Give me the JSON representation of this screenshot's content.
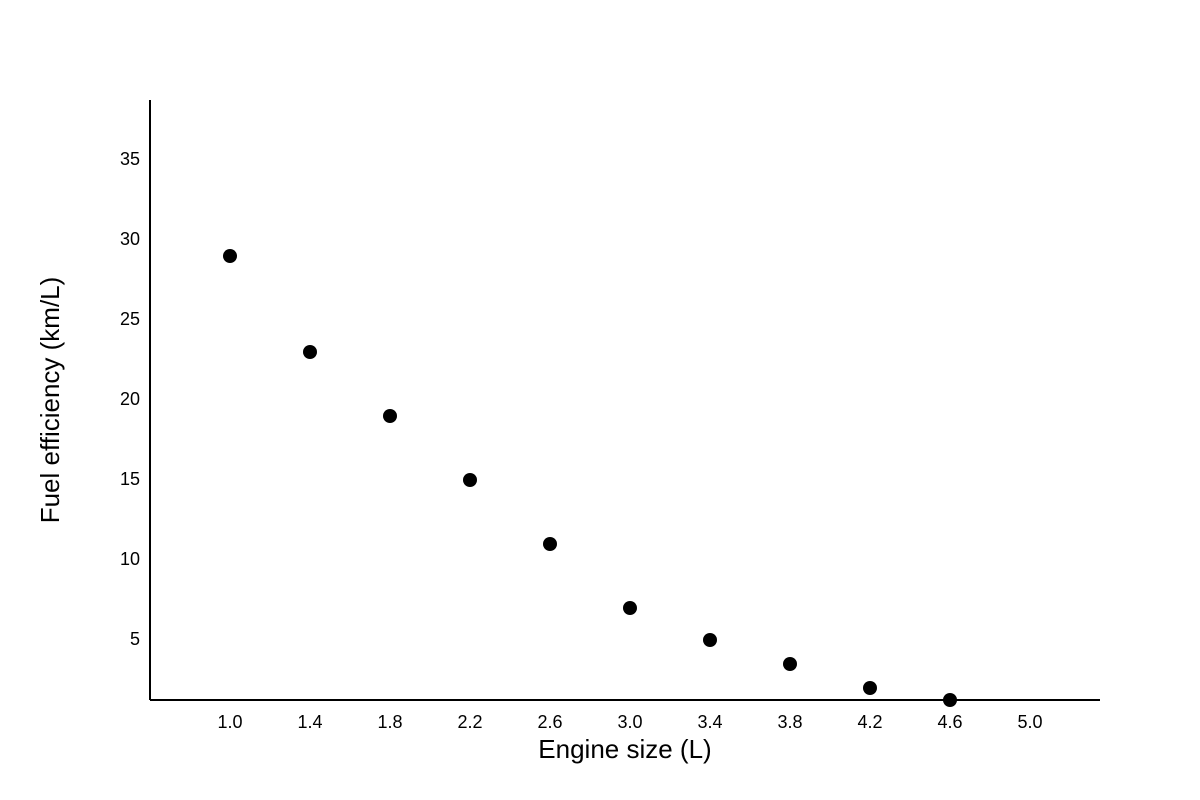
{
  "chart_data": {
    "type": "scatter",
    "x_label": "Engine size (L)",
    "y_label": "Fuel efficiency (km/L)",
    "x": [
      1.0,
      1.4,
      1.8,
      2.2,
      2.6,
      3.0,
      3.4,
      3.8,
      4.2,
      4.6
    ],
    "values": [
      29,
      23,
      19,
      15,
      11,
      7,
      5,
      3.5,
      2,
      1.25
    ],
    "color": "#000000",
    "xlim": [
      0.6,
      5.35
    ],
    "ylim": [
      1.25,
      38.75
    ],
    "xticks": [
      {
        "value": 1.0,
        "label": "1.0"
      },
      1.4,
      1.8,
      2.2,
      2.6,
      {
        "value": 3.0,
        "label": "3.0"
      },
      3.4,
      3.8,
      4.2,
      4.6,
      {
        "value": 5.0,
        "label": "5.0"
      }
    ],
    "yticks": [
      5,
      10,
      15,
      20,
      25,
      30,
      35
    ],
    "grid": false
  }
}
